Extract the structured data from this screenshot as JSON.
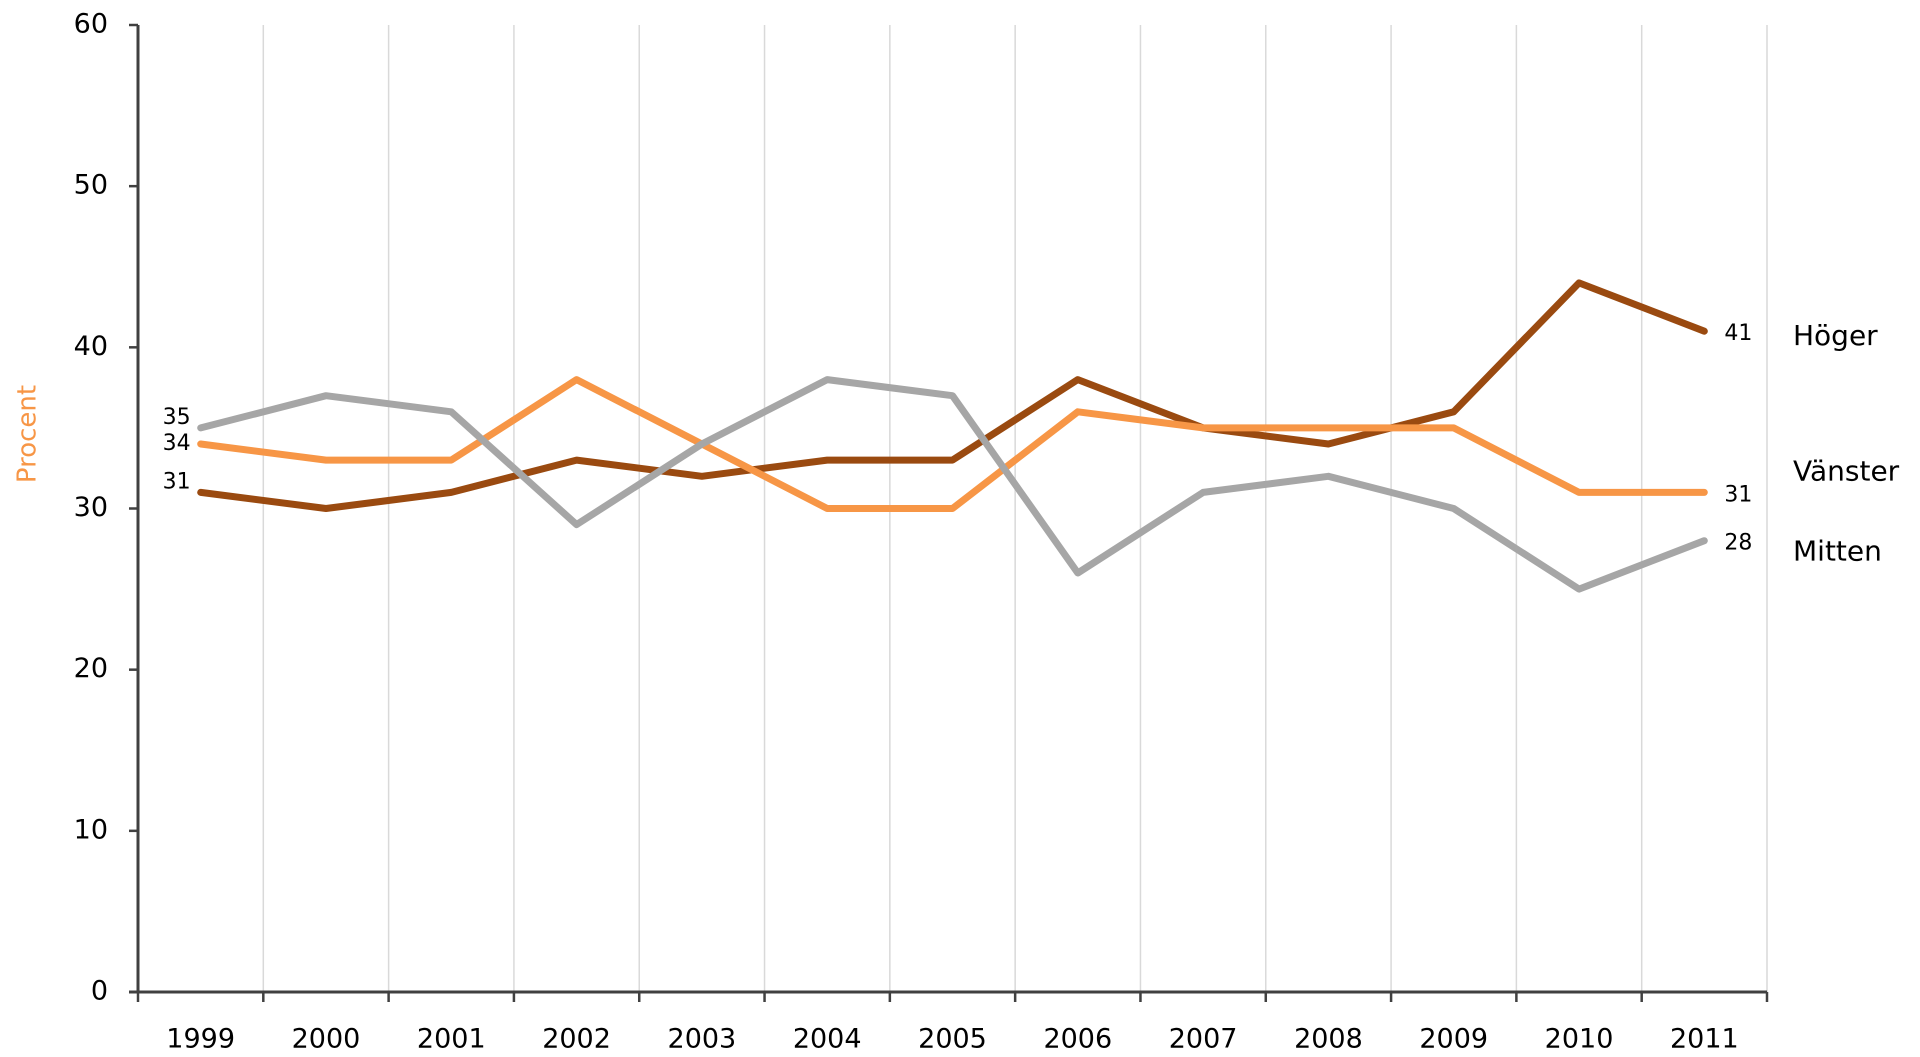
{
  "chart_data": {
    "type": "line",
    "y_label": "Procent",
    "categories": [
      "1999",
      "2000",
      "2001",
      "2002",
      "2003",
      "2004",
      "2005",
      "2006",
      "2007",
      "2008",
      "2009",
      "2010",
      "2011"
    ],
    "series": [
      {
        "name": "Höger",
        "color": "#9a4a10",
        "values": [
          31,
          30,
          31,
          33,
          32,
          33,
          33,
          38,
          35,
          34,
          36,
          44,
          41
        ]
      },
      {
        "name": "Vänster",
        "color": "#f79646",
        "values": [
          34,
          33,
          33,
          38,
          34,
          30,
          30,
          36,
          35,
          35,
          35,
          31,
          31
        ]
      },
      {
        "name": "Mitten",
        "color": "#a6a6a6",
        "values": [
          35,
          37,
          36,
          29,
          34,
          38,
          37,
          26,
          31,
          32,
          30,
          25,
          28
        ]
      }
    ],
    "ylim": [
      0,
      60
    ],
    "yticks": [
      0,
      10,
      20,
      30,
      40,
      50,
      60
    ],
    "y_label_color": "#f79646",
    "grid": true
  }
}
